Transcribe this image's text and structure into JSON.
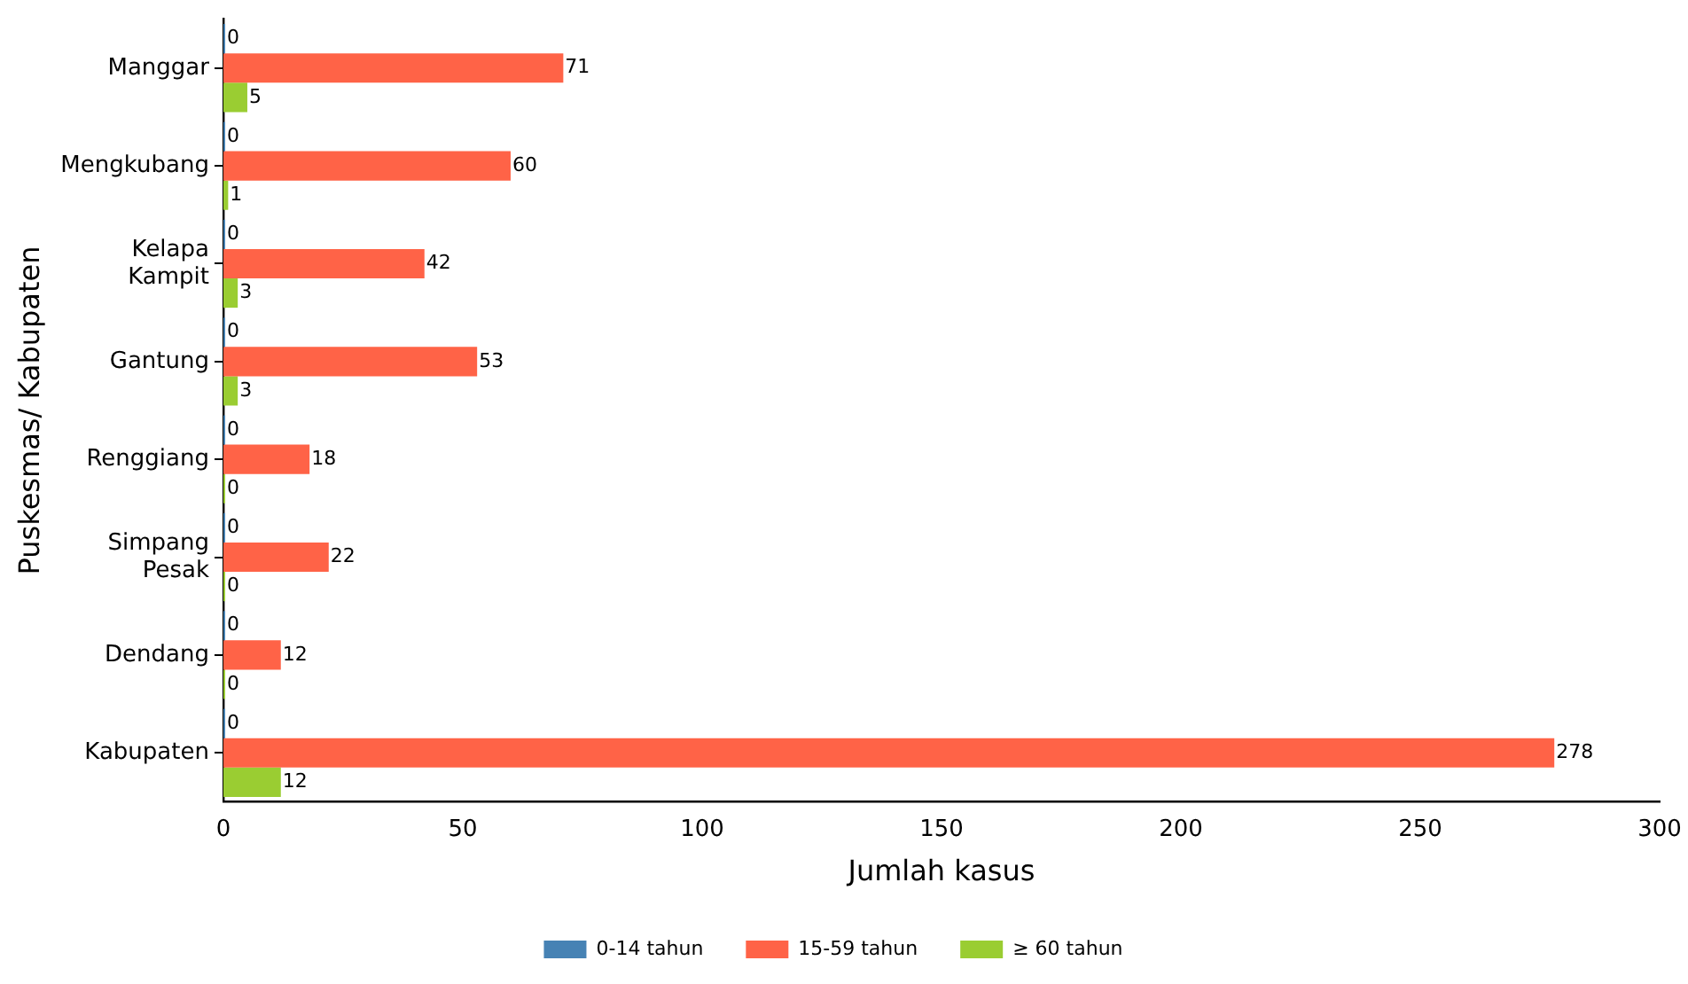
{
  "chart_data": {
    "type": "bar",
    "orientation": "horizontal",
    "xlabel": "Jumlah kasus",
    "ylabel": "Puskesmas/ Kabupaten",
    "categories": [
      "Manggar",
      "Mengkubang",
      "Kelapa\nKampit",
      "Gantung",
      "Renggiang",
      "Simpang\nPesak",
      "Dendang",
      "Kabupaten"
    ],
    "series": [
      {
        "name": "0-14 tahun",
        "color": "#4682b4",
        "values": [
          0,
          0,
          0,
          0,
          0,
          0,
          0,
          0
        ]
      },
      {
        "name": "15-59 tahun",
        "color": "#ff6347",
        "values": [
          71,
          60,
          42,
          53,
          18,
          22,
          12,
          278
        ]
      },
      {
        "name": "≥ 60 tahun",
        "color": "#9acd32",
        "values": [
          5,
          1,
          3,
          3,
          0,
          0,
          0,
          12
        ]
      }
    ],
    "xlim": [
      0,
      300
    ],
    "xticks": [
      0,
      50,
      100,
      150,
      200,
      250,
      300
    ],
    "grid": false,
    "legend": "bottom",
    "data_labels": true
  }
}
